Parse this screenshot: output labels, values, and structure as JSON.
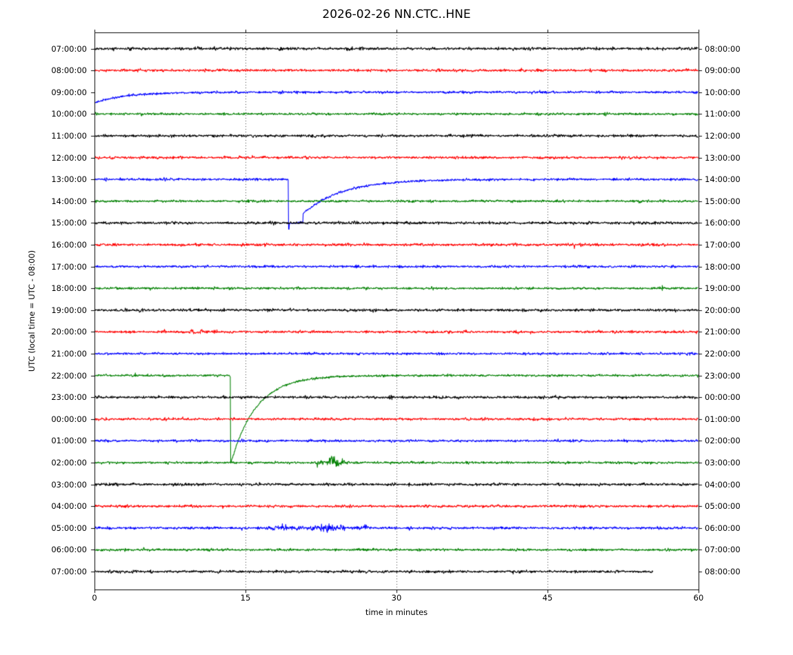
{
  "chart_data": {
    "type": "line",
    "subtype": "helicorder-dayplot",
    "title": "2026-02-26 NN.CTC..HNE",
    "xlabel": "time in minutes",
    "ylabel": "UTC (local time = UTC - 08:00)",
    "x_ticks": [
      0,
      15,
      30,
      45,
      60
    ],
    "x_range": [
      0,
      60
    ],
    "grid_minutes": [
      15,
      30,
      45
    ],
    "grid_style": "dotted",
    "minutes_per_row": 60,
    "trace_colors": [
      "#000000",
      "#ff0000",
      "#0000ff",
      "#008000"
    ],
    "rows": [
      {
        "left_label": "07:00:00",
        "right_label": "08:00:00",
        "color": 0,
        "amp": 1.15,
        "events": [
          {
            "type": "spike",
            "t": 19.5,
            "h": 2.2
          },
          {
            "type": "spike",
            "t": 25.6,
            "h": 3.2
          }
        ]
      },
      {
        "left_label": "08:00:00",
        "right_label": "09:00:00",
        "color": 1,
        "amp": 1.05,
        "events": []
      },
      {
        "left_label": "09:00:00",
        "right_label": "10:00:00",
        "color": 2,
        "amp": 1.0,
        "events": [
          {
            "type": "start_offset",
            "offset": 15.5,
            "tau": 3.0
          }
        ]
      },
      {
        "left_label": "10:00:00",
        "right_label": "11:00:00",
        "color": 3,
        "amp": 0.95,
        "events": [
          {
            "type": "spike",
            "t": 24.2,
            "h": 1.4
          }
        ]
      },
      {
        "left_label": "11:00:00",
        "right_label": "12:00:00",
        "color": 0,
        "amp": 1.1,
        "events": []
      },
      {
        "left_label": "12:00:00",
        "right_label": "13:00:00",
        "color": 1,
        "amp": 1.0,
        "events": []
      },
      {
        "left_label": "13:00:00",
        "right_label": "14:00:00",
        "color": 2,
        "amp": 1.0,
        "events": [
          {
            "type": "square_drop",
            "t0": 19.25,
            "depth": 72,
            "mid": 64,
            "t1": 20.7,
            "step": 50,
            "tau": 3.8
          }
        ]
      },
      {
        "left_label": "14:00:00",
        "right_label": "15:00:00",
        "color": 3,
        "amp": 0.95,
        "events": []
      },
      {
        "left_label": "15:00:00",
        "right_label": "16:00:00",
        "color": 0,
        "amp": 1.15,
        "events": []
      },
      {
        "left_label": "16:00:00",
        "right_label": "17:00:00",
        "color": 1,
        "amp": 1.1,
        "events": []
      },
      {
        "left_label": "17:00:00",
        "right_label": "18:00:00",
        "color": 2,
        "amp": 1.0,
        "events": [
          {
            "type": "spike",
            "t": 26.2,
            "h": 2.0
          }
        ]
      },
      {
        "left_label": "18:00:00",
        "right_label": "19:00:00",
        "color": 3,
        "amp": 0.95,
        "events": [
          {
            "type": "spike",
            "t": 56.4,
            "h": 4.5
          }
        ]
      },
      {
        "left_label": "19:00:00",
        "right_label": "20:00:00",
        "color": 0,
        "amp": 1.1,
        "events": [
          {
            "type": "spike",
            "t": 12.9,
            "h": 2.2
          }
        ]
      },
      {
        "left_label": "20:00:00",
        "right_label": "21:00:00",
        "color": 1,
        "amp": 1.05,
        "events": [
          {
            "type": "burst",
            "t0": 9.0,
            "t1": 11.2,
            "amp": 1.1
          }
        ]
      },
      {
        "left_label": "21:00:00",
        "right_label": "22:00:00",
        "color": 2,
        "amp": 1.0,
        "events": [
          {
            "type": "spike",
            "t": 51.6,
            "h": 1.6
          }
        ]
      },
      {
        "left_label": "22:00:00",
        "right_label": "23:00:00",
        "color": 3,
        "amp": 0.95,
        "events": [
          {
            "type": "drop_recovery",
            "t0": 13.5,
            "depth": 129,
            "tau": 2.5
          }
        ]
      },
      {
        "left_label": "23:00:00",
        "right_label": "00:00:00",
        "color": 0,
        "amp": 1.1,
        "events": []
      },
      {
        "left_label": "00:00:00",
        "right_label": "01:00:00",
        "color": 1,
        "amp": 1.05,
        "events": []
      },
      {
        "left_label": "01:00:00",
        "right_label": "02:00:00",
        "color": 2,
        "amp": 1.0,
        "events": []
      },
      {
        "left_label": "02:00:00",
        "right_label": "03:00:00",
        "color": 3,
        "amp": 0.95,
        "events": [
          {
            "type": "burst",
            "t0": 21.8,
            "t1": 25.5,
            "amp": 2.6
          }
        ]
      },
      {
        "left_label": "03:00:00",
        "right_label": "04:00:00",
        "color": 0,
        "amp": 1.1,
        "events": []
      },
      {
        "left_label": "04:00:00",
        "right_label": "05:00:00",
        "color": 1,
        "amp": 1.05,
        "events": []
      },
      {
        "left_label": "05:00:00",
        "right_label": "06:00:00",
        "color": 2,
        "amp": 1.05,
        "events": [
          {
            "type": "burst",
            "t0": 16.8,
            "t1": 21.0,
            "amp": 1.8
          },
          {
            "type": "burst",
            "t0": 20.3,
            "t1": 25.3,
            "amp": 2.8
          },
          {
            "type": "burst",
            "t0": 25.5,
            "t1": 27.8,
            "amp": 1.2
          }
        ]
      },
      {
        "left_label": "06:00:00",
        "right_label": "07:00:00",
        "color": 3,
        "amp": 0.95,
        "events": [
          {
            "type": "burst",
            "t0": 4.3,
            "t1": 6.2,
            "amp": 0.8
          }
        ]
      },
      {
        "left_label": "07:00:00",
        "right_label": "08:00:00",
        "color": 0,
        "amp": 1.1,
        "events": [
          {
            "type": "end",
            "t": 55.5
          }
        ]
      }
    ]
  }
}
